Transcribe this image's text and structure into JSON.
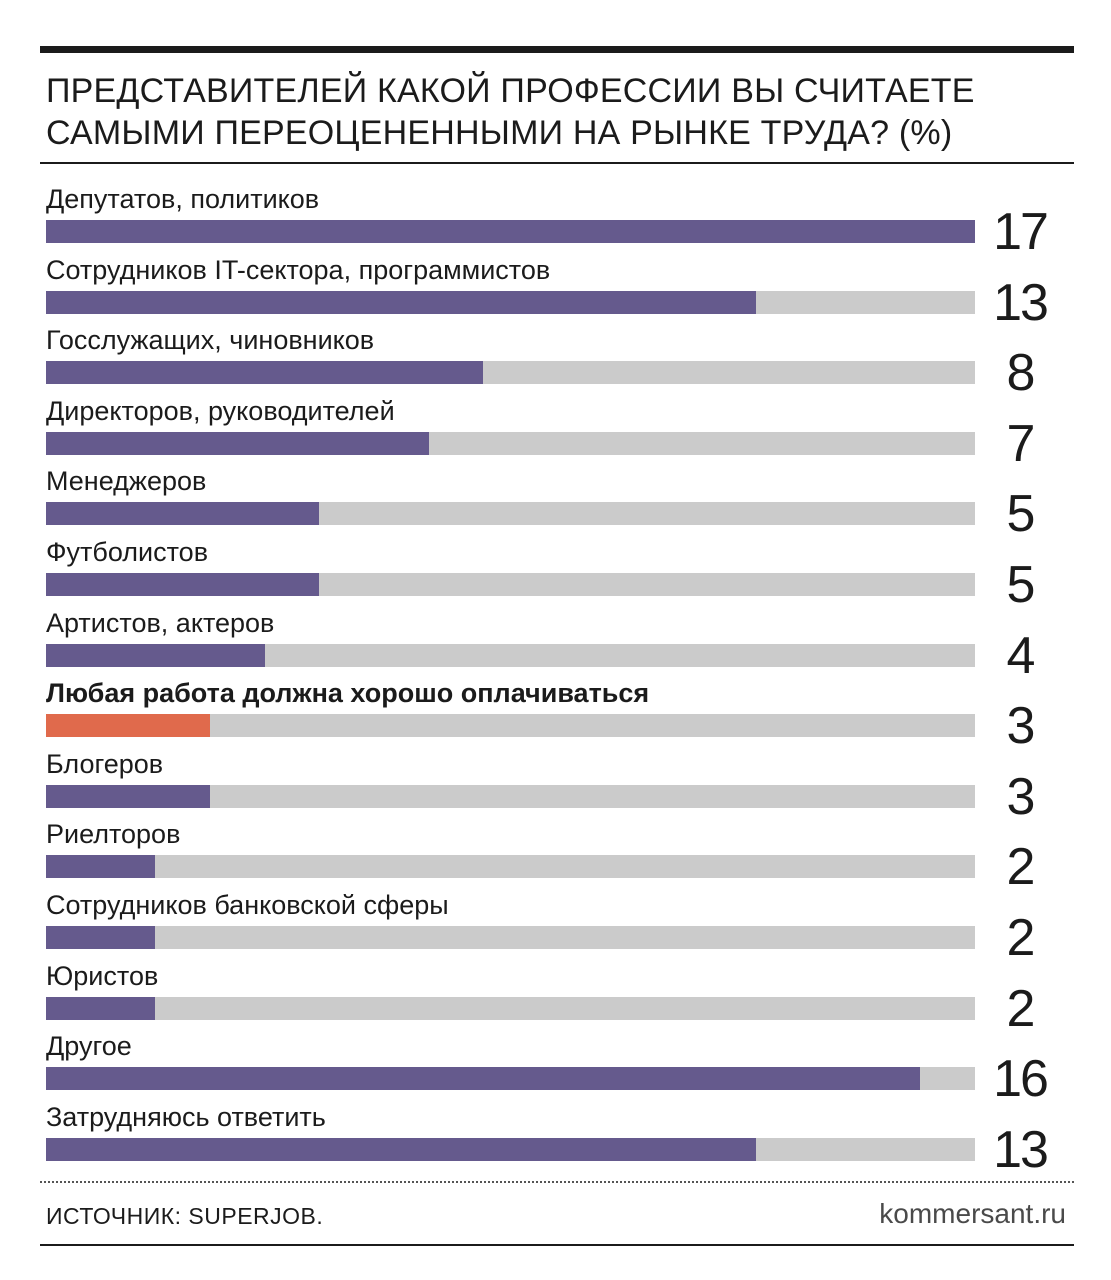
{
  "title": "ПРЕДСТАВИТЕЛЕЙ КАКОЙ ПРОФЕССИИ ВЫ СЧИТАЕТЕ САМЫМИ ПЕРЕОЦЕНЕННЫМИ НА РЫНКЕ ТРУДА? (%)",
  "footer": {
    "source": "ИСТОЧНИК: SUPERJOB.",
    "site": "kommersant.ru"
  },
  "colors": {
    "bar": "#655a8d",
    "highlight_bar": "#e06a4c",
    "track": "#cbcbcb"
  },
  "chart_data": {
    "type": "bar",
    "orientation": "horizontal",
    "title": "ПРЕДСТАВИТЕЛЕЙ КАКОЙ ПРОФЕССИИ ВЫ СЧИТАЕТЕ САМЫМИ ПЕРЕОЦЕНЕННЫМИ НА РЫНКЕ ТРУДА? (%)",
    "xlim": [
      0,
      17
    ],
    "grid": false,
    "categories": [
      "Депутатов, политиков",
      "Сотрудников IT-сектора, программистов",
      "Госслужащих, чиновников",
      "Директоров, руководителей",
      "Менеджеров",
      "Футболистов",
      "Артистов, актеров",
      "Любая работа должна хорошо оплачиваться",
      "Блогеров",
      "Риелторов",
      "Сотрудников банковской сферы",
      "Юристов",
      "Другое",
      "Затрудняюсь ответить"
    ],
    "values": [
      17,
      13,
      8,
      7,
      5,
      5,
      4,
      3,
      3,
      2,
      2,
      2,
      16,
      13
    ],
    "highlight": [
      "Любая работа должна хорошо оплачиваться"
    ]
  }
}
